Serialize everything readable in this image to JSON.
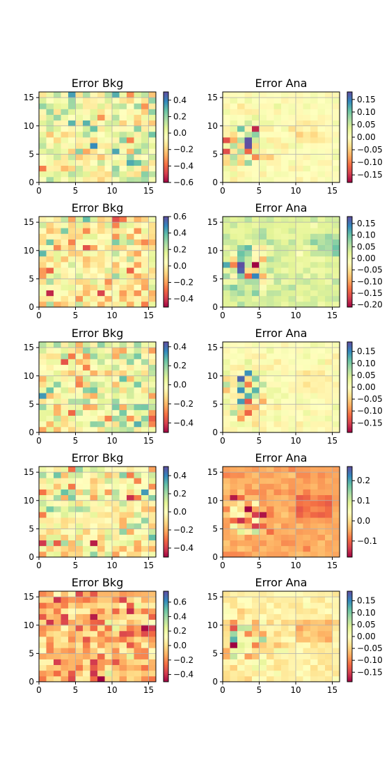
{
  "figure": {
    "background": "#ffffff",
    "colormap": "Spectral",
    "colormap_stops": [
      "#9e0142",
      "#d53e4f",
      "#f46d43",
      "#fdae61",
      "#fee08b",
      "#ffffbf",
      "#e6f598",
      "#abdda4",
      "#66c2a5",
      "#3288bd",
      "#5e4fa2"
    ],
    "grid": true,
    "grid_color": "#b0b0b0"
  },
  "chart_data": [
    {
      "type": "heatmap",
      "title": "Error Bkg",
      "xlim": [
        0,
        16
      ],
      "ylim": [
        0,
        16
      ],
      "x_ticks": [
        "0",
        "5",
        "10",
        "15"
      ],
      "y_ticks": [
        "0",
        "5",
        "10",
        "15"
      ],
      "color_range": [
        -0.6,
        0.5
      ],
      "colorbar_ticks": [
        "0.4",
        "0.2",
        "0.0",
        "−0.2",
        "−0.4",
        "−0.6"
      ],
      "colorbar_tick_values": [
        0.4,
        0.2,
        0.0,
        -0.2,
        -0.4,
        -0.6
      ],
      "pattern": "noise",
      "seed": 11
    },
    {
      "type": "heatmap",
      "title": "Error Ana",
      "xlim": [
        0,
        16
      ],
      "ylim": [
        0,
        16
      ],
      "x_ticks": [
        "0",
        "5",
        "10",
        "15"
      ],
      "y_ticks": [
        "0",
        "5",
        "10",
        "15"
      ],
      "color_range": [
        -0.18,
        0.18
      ],
      "colorbar_ticks": [
        "0.15",
        "0.10",
        "0.05",
        "0.00",
        "−0.05",
        "−0.10",
        "−0.15"
      ],
      "colorbar_tick_values": [
        0.15,
        0.1,
        0.05,
        0.0,
        -0.05,
        -0.1,
        -0.15
      ],
      "pattern": "smooth",
      "offset": 0.0,
      "seed": 21
    },
    {
      "type": "heatmap",
      "title": "Error Bkg",
      "xlim": [
        0,
        16
      ],
      "ylim": [
        0,
        16
      ],
      "x_ticks": [
        "0",
        "5",
        "10",
        "15"
      ],
      "y_ticks": [
        "0",
        "5",
        "10",
        "15"
      ],
      "color_range": [
        -0.5,
        0.6
      ],
      "colorbar_ticks": [
        "0.6",
        "0.4",
        "0.2",
        "0.0",
        "−0.2",
        "−0.4"
      ],
      "colorbar_tick_values": [
        0.6,
        0.4,
        0.2,
        0.0,
        -0.2,
        -0.4
      ],
      "pattern": "noise",
      "seed": 12
    },
    {
      "type": "heatmap",
      "title": "Error Ana",
      "xlim": [
        0,
        16
      ],
      "ylim": [
        0,
        16
      ],
      "x_ticks": [
        "0",
        "5",
        "10",
        "15"
      ],
      "y_ticks": [
        "0",
        "5",
        "10",
        "15"
      ],
      "color_range": [
        -0.21,
        0.18
      ],
      "colorbar_ticks": [
        "0.15",
        "0.10",
        "0.05",
        "0.00",
        "−0.05",
        "−0.10",
        "−0.15",
        "−0.20"
      ],
      "colorbar_tick_values": [
        0.15,
        0.1,
        0.05,
        0.0,
        -0.05,
        -0.1,
        -0.15,
        -0.2
      ],
      "pattern": "smooth",
      "offset": 0.03,
      "seed": 22
    },
    {
      "type": "heatmap",
      "title": "Error Bkg",
      "xlim": [
        0,
        16
      ],
      "ylim": [
        0,
        16
      ],
      "x_ticks": [
        "0",
        "5",
        "10",
        "15"
      ],
      "y_ticks": [
        "0",
        "5",
        "10",
        "15"
      ],
      "color_range": [
        -0.5,
        0.45
      ],
      "colorbar_ticks": [
        "0.4",
        "0.2",
        "0.0",
        "−0.2",
        "−0.4"
      ],
      "colorbar_tick_values": [
        0.4,
        0.2,
        0.0,
        -0.2,
        -0.4
      ],
      "pattern": "noise",
      "seed": 13
    },
    {
      "type": "heatmap",
      "title": "Error Ana",
      "xlim": [
        0,
        16
      ],
      "ylim": [
        0,
        16
      ],
      "x_ticks": [
        "0",
        "5",
        "10",
        "15"
      ],
      "y_ticks": [
        "0",
        "5",
        "10",
        "15"
      ],
      "color_range": [
        -0.19,
        0.19
      ],
      "colorbar_ticks": [
        "0.15",
        "0.10",
        "0.05",
        "0.00",
        "−0.05",
        "−0.10",
        "−0.15"
      ],
      "colorbar_tick_values": [
        0.15,
        0.1,
        0.05,
        0.0,
        -0.05,
        -0.1,
        -0.15
      ],
      "pattern": "smooth",
      "offset": 0.0,
      "seed": 23
    },
    {
      "type": "heatmap",
      "title": "Error Bkg",
      "xlim": [
        0,
        16
      ],
      "ylim": [
        0,
        16
      ],
      "x_ticks": [
        "0",
        "5",
        "10",
        "15"
      ],
      "y_ticks": [
        "0",
        "5",
        "10",
        "15"
      ],
      "color_range": [
        -0.5,
        0.5
      ],
      "colorbar_ticks": [
        "0.4",
        "0.2",
        "0.0",
        "−0.2",
        "−0.4"
      ],
      "colorbar_tick_values": [
        0.4,
        0.2,
        0.0,
        -0.2,
        -0.4
      ],
      "pattern": "noise",
      "seed": 14
    },
    {
      "type": "heatmap",
      "title": "Error Ana",
      "xlim": [
        0,
        16
      ],
      "ylim": [
        0,
        16
      ],
      "x_ticks": [
        "0",
        "5",
        "10",
        "15"
      ],
      "y_ticks": [
        "0",
        "5",
        "10",
        "15"
      ],
      "color_range": [
        -0.18,
        0.27
      ],
      "colorbar_ticks": [
        "0.2",
        "0.1",
        "0.0",
        "−0.1"
      ],
      "colorbar_tick_values": [
        0.2,
        0.1,
        0.0,
        -0.1
      ],
      "pattern": "smooth",
      "offset": -0.05,
      "seed": 24
    },
    {
      "type": "heatmap",
      "title": "Error Bkg",
      "xlim": [
        0,
        16
      ],
      "ylim": [
        0,
        16
      ],
      "x_ticks": [
        "0",
        "5",
        "10",
        "15"
      ],
      "y_ticks": [
        "0",
        "5",
        "10",
        "15"
      ],
      "color_range": [
        -0.5,
        0.75
      ],
      "colorbar_ticks": [
        "0.6",
        "0.4",
        "0.2",
        "0.0",
        "−0.2",
        "−0.4"
      ],
      "colorbar_tick_values": [
        0.6,
        0.4,
        0.2,
        0.0,
        -0.2,
        -0.4
      ],
      "pattern": "noise",
      "offset": -0.08,
      "seed": 15
    },
    {
      "type": "heatmap",
      "title": "Error Ana",
      "xlim": [
        0,
        16
      ],
      "ylim": [
        0,
        16
      ],
      "x_ticks": [
        "0",
        "5",
        "10",
        "15"
      ],
      "y_ticks": [
        "0",
        "5",
        "10",
        "15"
      ],
      "color_range": [
        -0.19,
        0.19
      ],
      "colorbar_ticks": [
        "0.15",
        "0.10",
        "0.05",
        "0.00",
        "−0.05",
        "−0.10",
        "−0.15"
      ],
      "colorbar_tick_values": [
        0.15,
        0.1,
        0.05,
        0.0,
        -0.05,
        -0.1,
        -0.15
      ],
      "pattern": "smooth",
      "offset": -0.02,
      "seed": 25
    }
  ]
}
